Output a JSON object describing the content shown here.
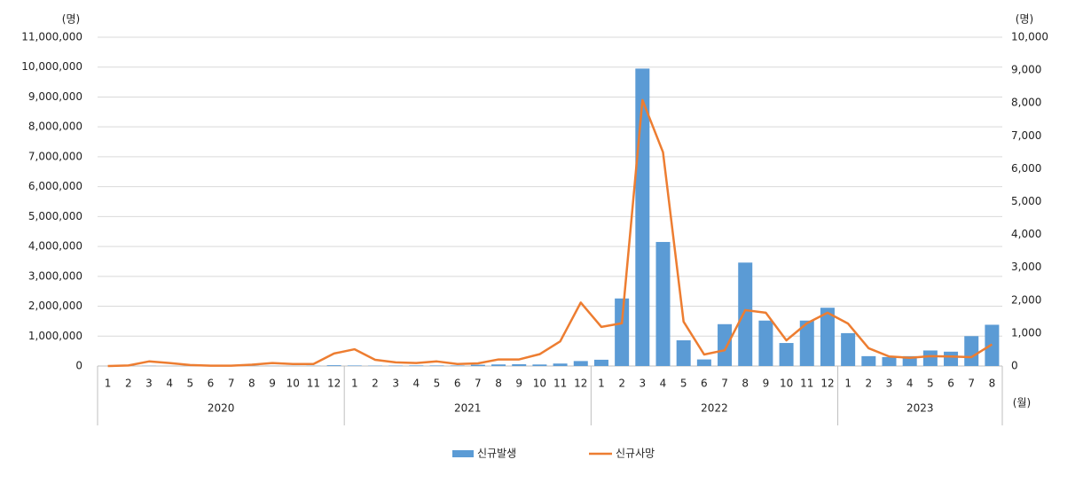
{
  "chart_data": {
    "type": "bar-line",
    "y_unit": "(명)",
    "y2_unit": "(명)",
    "x_unit": "(월)",
    "years": [
      {
        "year": "2020",
        "months": [
          "1",
          "2",
          "3",
          "4",
          "5",
          "6",
          "7",
          "8",
          "9",
          "10",
          "11",
          "12"
        ]
      },
      {
        "year": "2021",
        "months": [
          "1",
          "2",
          "3",
          "4",
          "5",
          "6",
          "7",
          "8",
          "9",
          "10",
          "11",
          "12"
        ]
      },
      {
        "year": "2022",
        "months": [
          "1",
          "2",
          "3",
          "4",
          "5",
          "6",
          "7",
          "8",
          "9",
          "10",
          "11",
          "12"
        ]
      },
      {
        "year": "2023",
        "months": [
          "1",
          "2",
          "3",
          "4",
          "5",
          "6",
          "7",
          "8"
        ]
      }
    ],
    "series": [
      {
        "name": "신규발생",
        "color": "#5b9bd5",
        "kind": "bar",
        "values": [
          11,
          3150,
          6636,
          979,
          703,
          1331,
          1506,
          5642,
          3865,
          2700,
          7690,
          26528,
          17500,
          11500,
          13400,
          18900,
          17300,
          16600,
          41400,
          53000,
          59900,
          50700,
          82600,
          166000,
          210000,
          2260000,
          9950000,
          4150000,
          860000,
          220000,
          1400000,
          3460000,
          1520000,
          770000,
          1520000,
          1950000,
          1100000,
          330000,
          300000,
          330000,
          520000,
          480000,
          1000000,
          1380000
        ]
      },
      {
        "name": "신규사망",
        "color": "#ed7d31",
        "kind": "line",
        "axis": "y2",
        "values": [
          0,
          17,
          140,
          90,
          30,
          10,
          10,
          40,
          90,
          60,
          60,
          380,
          510,
          190,
          110,
          90,
          140,
          60,
          80,
          200,
          200,
          360,
          750,
          1930,
          1190,
          1300,
          8090,
          6500,
          1350,
          350,
          480,
          1700,
          1620,
          780,
          1300,
          1620,
          1290,
          540,
          290,
          250,
          300,
          290,
          270,
          660
        ]
      }
    ],
    "ylim": [
      0,
      11000000
    ],
    "yticks": [
      0,
      {
        "value": 1000000,
        "label": "1,000,000"
      },
      {
        "value": 2000000,
        "label": "2,000,000"
      },
      {
        "value": 3000000,
        "label": "3,000,000"
      },
      {
        "value": 4000000,
        "label": "4,000,000"
      },
      {
        "value": 5000000,
        "label": "5,000,000"
      },
      {
        "value": 6000000,
        "label": "6,000,000"
      },
      {
        "value": 7000000,
        "label": "7,000,000"
      },
      {
        "value": 8000000,
        "label": "8,000,000"
      },
      {
        "value": 9000000,
        "label": "9,000,000"
      },
      {
        "value": 10000000,
        "label": "10,000,000"
      },
      {
        "value": 11000000,
        "label": "11,000,000"
      }
    ],
    "y2lim": [
      0,
      10000
    ],
    "y2ticks": [
      0,
      {
        "value": 1000,
        "label": "1,000"
      },
      {
        "value": 2000,
        "label": "2,000"
      },
      {
        "value": 3000,
        "label": "3,000"
      },
      {
        "value": 4000,
        "label": "4,000"
      },
      {
        "value": 5000,
        "label": "5,000"
      },
      {
        "value": 6000,
        "label": "6,000"
      },
      {
        "value": 7000,
        "label": "7,000"
      },
      {
        "value": 8000,
        "label": "8,000"
      },
      {
        "value": 9000,
        "label": "9,000"
      },
      {
        "value": 10000,
        "label": "10,000"
      }
    ],
    "grid": true,
    "legend": "bottom"
  }
}
